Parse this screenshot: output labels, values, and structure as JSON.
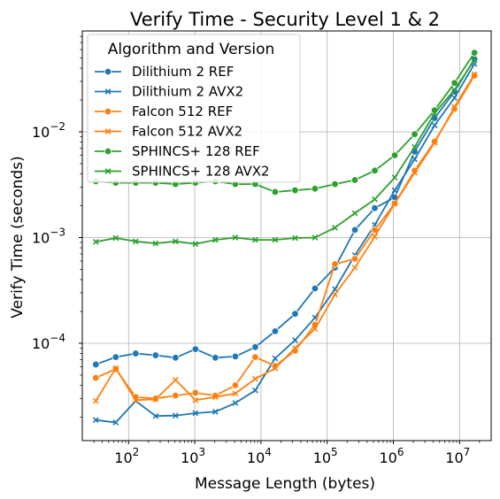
{
  "chart_data": {
    "type": "line",
    "title": "Verify Time - Security Level 1 & 2",
    "xlabel": "Message Length (bytes)",
    "ylabel": "Verify Time (seconds)",
    "x_scale": "log",
    "y_scale": "log",
    "xlim": [
      20,
      30000000
    ],
    "ylim": [
      1.2e-05,
      0.09
    ],
    "x_ticks": [
      {
        "value": 100,
        "base": "10",
        "exp": "2"
      },
      {
        "value": 1000,
        "base": "10",
        "exp": "3"
      },
      {
        "value": 10000,
        "base": "10",
        "exp": "4"
      },
      {
        "value": 100000,
        "base": "10",
        "exp": "5"
      },
      {
        "value": 1000000,
        "base": "10",
        "exp": "6"
      },
      {
        "value": 10000000,
        "base": "10",
        "exp": "7"
      }
    ],
    "y_ticks": [
      {
        "value": 0.0001,
        "base": "10",
        "exp": "−4"
      },
      {
        "value": 0.001,
        "base": "10",
        "exp": "−3"
      },
      {
        "value": 0.01,
        "base": "10",
        "exp": "−2"
      }
    ],
    "grid": true,
    "legend": {
      "title": "Algorithm and Version",
      "position": "top-left"
    },
    "x": [
      32,
      64,
      128,
      256,
      512,
      1024,
      2048,
      4096,
      8192,
      16384,
      32768,
      65536,
      131072,
      262144,
      524288,
      1048576,
      2097152,
      4194304,
      8388608,
      16777216
    ],
    "series": [
      {
        "name": "Dilithium 2 REF",
        "color": "#1f77b4",
        "marker": "circle",
        "values": [
          6.3e-05,
          7.4e-05,
          8e-05,
          7.7e-05,
          7.3e-05,
          8.8e-05,
          7.3e-05,
          7.5e-05,
          9.2e-05,
          0.00013,
          0.00019,
          0.00033,
          0.00052,
          0.00118,
          0.0019,
          0.0024,
          0.0065,
          0.0135,
          0.024,
          0.049
        ]
      },
      {
        "name": "Dilithium 2 AVX2",
        "color": "#1f77b4",
        "marker": "x",
        "values": [
          1.88e-05,
          1.78e-05,
          2.85e-05,
          2.05e-05,
          2.07e-05,
          2.18e-05,
          2.25e-05,
          2.72e-05,
          3.58e-05,
          7.2e-05,
          0.000107,
          0.000175,
          0.000325,
          0.00068,
          0.00132,
          0.0028,
          0.0055,
          0.0115,
          0.021,
          0.044
        ]
      },
      {
        "name": "Falcon 512 REF",
        "color": "#ff7f0e",
        "marker": "circle",
        "values": [
          4.7e-05,
          5.7e-05,
          3.1e-05,
          3e-05,
          3.2e-05,
          3.4e-05,
          3.2e-05,
          4e-05,
          7.4e-05,
          6.1e-05,
          8.5e-05,
          0.00015,
          0.00056,
          0.00063,
          0.00118,
          0.0021,
          0.0043,
          0.0081,
          0.0165,
          0.034
        ]
      },
      {
        "name": "Falcon 512 AVX2",
        "color": "#ff7f0e",
        "marker": "x",
        "values": [
          2.85e-05,
          5.8e-05,
          2.9e-05,
          2.95e-05,
          4.5e-05,
          2.9e-05,
          3.1e-05,
          3.35e-05,
          4.6e-05,
          5.8e-05,
          9e-05,
          0.000137,
          0.00029,
          0.00052,
          0.00102,
          0.0021,
          0.0041,
          0.0079,
          0.0172,
          0.035
        ]
      },
      {
        "name": "SPHINCS+ 128 REF",
        "color": "#2ca02c",
        "marker": "circle",
        "values": [
          0.0034,
          0.0033,
          0.0033,
          0.0033,
          0.0032,
          0.0033,
          0.0034,
          0.0032,
          0.0032,
          0.0027,
          0.0028,
          0.0029,
          0.0032,
          0.0035,
          0.0043,
          0.006,
          0.0095,
          0.016,
          0.029,
          0.056
        ]
      },
      {
        "name": "SPHINCS+ 128 AVX2",
        "color": "#2ca02c",
        "marker": "x",
        "values": [
          0.00091,
          0.00099,
          0.00092,
          0.00088,
          0.00092,
          0.00087,
          0.00095,
          0.001,
          0.00095,
          0.00095,
          0.00099,
          0.001,
          0.00124,
          0.0017,
          0.0023,
          0.0037,
          0.0072,
          0.015,
          0.025,
          0.048
        ]
      }
    ]
  }
}
